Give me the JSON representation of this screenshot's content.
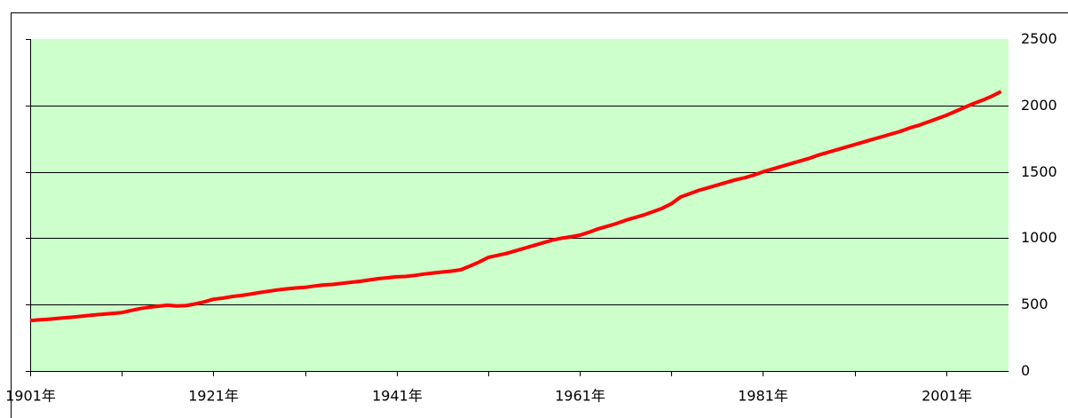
{
  "chart_data": {
    "type": "line",
    "x": [
      1901,
      1902,
      1903,
      1904,
      1905,
      1906,
      1907,
      1908,
      1909,
      1910,
      1911,
      1912,
      1913,
      1914,
      1915,
      1916,
      1917,
      1918,
      1919,
      1920,
      1921,
      1922,
      1923,
      1924,
      1925,
      1926,
      1927,
      1928,
      1929,
      1930,
      1931,
      1932,
      1933,
      1934,
      1935,
      1936,
      1937,
      1938,
      1939,
      1940,
      1941,
      1942,
      1943,
      1944,
      1945,
      1946,
      1947,
      1948,
      1949,
      1950,
      1951,
      1952,
      1953,
      1954,
      1955,
      1956,
      1957,
      1958,
      1959,
      1960,
      1961,
      1962,
      1963,
      1964,
      1965,
      1966,
      1967,
      1968,
      1969,
      1970,
      1971,
      1972,
      1973,
      1974,
      1975,
      1976,
      1977,
      1978,
      1979,
      1980,
      1981,
      1982,
      1983,
      1984,
      1985,
      1986,
      1987,
      1988,
      1989,
      1990,
      1991,
      1992,
      1993,
      1994,
      1995,
      1996,
      1997,
      1998,
      1999,
      2000,
      2001,
      2002,
      2003,
      2004,
      2005,
      2006,
      2007
    ],
    "series": [
      {
        "color": "#ff0000",
        "values": [
          380,
          385,
          390,
          396,
          402,
          408,
          415,
          422,
          428,
          434,
          440,
          455,
          470,
          480,
          488,
          495,
          490,
          492,
          505,
          520,
          540,
          548,
          560,
          568,
          578,
          590,
          600,
          610,
          618,
          625,
          630,
          640,
          648,
          652,
          660,
          668,
          675,
          685,
          695,
          702,
          709,
          712,
          720,
          730,
          738,
          745,
          752,
          762,
          790,
          820,
          855,
          870,
          885,
          905,
          925,
          945,
          965,
          985,
          1000,
          1010,
          1023,
          1045,
          1070,
          1090,
          1110,
          1135,
          1155,
          1175,
          1200,
          1225,
          1260,
          1310,
          1335,
          1360,
          1380,
          1400,
          1420,
          1440,
          1455,
          1475,
          1500,
          1520,
          1540,
          1560,
          1580,
          1600,
          1625,
          1645,
          1665,
          1685,
          1705,
          1725,
          1745,
          1765,
          1785,
          1805,
          1830,
          1850,
          1875,
          1900,
          1925,
          1955,
          1985,
          2015,
          2040,
          2070,
          2105
        ]
      }
    ],
    "xlim": [
      1901,
      2007.8
    ],
    "xticks": [
      {
        "value": 1901,
        "label": "1901年"
      },
      {
        "value": 1921,
        "label": "1921年"
      },
      {
        "value": 1941,
        "label": "1941年"
      },
      {
        "value": 1961,
        "label": "1961年"
      },
      {
        "value": 1981,
        "label": "1981年"
      },
      {
        "value": 2001,
        "label": "2001年"
      }
    ],
    "xminor_ticks": [
      1911,
      1931,
      1951,
      1971,
      1991
    ],
    "ylim": [
      0,
      2500
    ],
    "yticks": [
      0,
      500,
      1000,
      1500,
      2000,
      2500
    ],
    "grid": true,
    "background": "#ccffcc"
  }
}
